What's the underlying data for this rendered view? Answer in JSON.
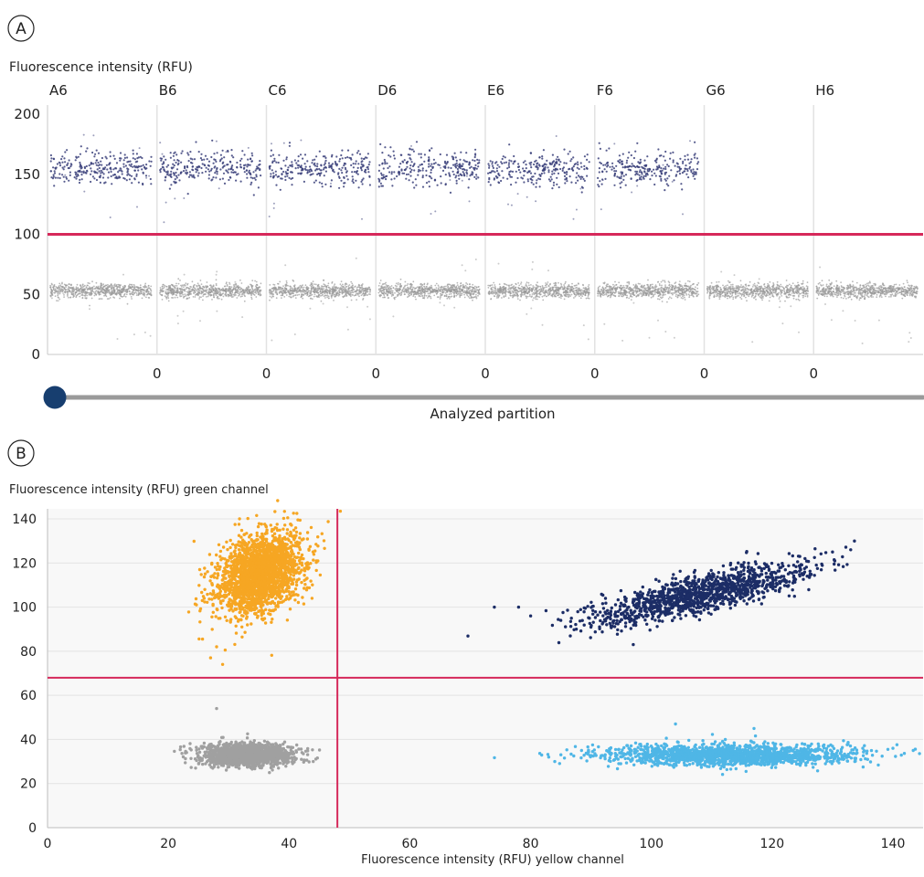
{
  "panels": {
    "a": {
      "label": "A"
    },
    "b": {
      "label": "B"
    }
  },
  "colors": {
    "threshold": "#d6285a",
    "positive_a": "#3a3f7a",
    "negative_a": "#9a9a9a",
    "slider_knob": "#173e6f",
    "slider_track": "#9a9a9a",
    "grid": "#e3e3e3",
    "plot_bg": "#f8f8f8",
    "cluster_orange": "#f6a623",
    "cluster_navy": "#1c2d66",
    "cluster_grey": "#a0a0a0",
    "cluster_lightblue": "#4fb6e6"
  },
  "slider": {
    "label": "Analyzed partition",
    "value_fraction": 0.0
  },
  "chart_data": [
    {
      "type": "scatter",
      "ylabel": "Fluorescence intensity (RFU)",
      "xlabel": "",
      "ylim": [
        0,
        200
      ],
      "yticks": [
        0,
        50,
        100,
        150,
        200
      ],
      "wells": [
        "A6",
        "B6",
        "C6",
        "D6",
        "E6",
        "F6",
        "G6",
        "H6"
      ],
      "well_boundary_labels": [
        "0",
        "0",
        "0",
        "0",
        "0",
        "0",
        "0"
      ],
      "threshold": 100,
      "grid": false,
      "series": [
        {
          "role": "positive",
          "wells_present": [
            "A6",
            "B6",
            "C6",
            "D6",
            "E6",
            "F6"
          ],
          "center": 155,
          "spread": 7
        },
        {
          "role": "negative",
          "wells_present": [
            "A6",
            "B6",
            "C6",
            "D6",
            "E6",
            "F6",
            "G6",
            "H6"
          ],
          "center": 53,
          "spread": 3
        }
      ]
    },
    {
      "type": "scatter",
      "ylabel": "Fluorescence intensity (RFU) green channel",
      "xlabel": "Fluorescence intensity (RFU) yellow channel",
      "xlim": [
        0,
        145
      ],
      "ylim": [
        0,
        145
      ],
      "xticks": [
        0,
        20,
        40,
        60,
        80,
        100,
        120,
        140
      ],
      "yticks": [
        0,
        20,
        40,
        60,
        80,
        100,
        120,
        140
      ],
      "threshold_x": 48,
      "threshold_y": 68,
      "grid": true,
      "series": [
        {
          "color_key": "cluster_orange",
          "cx": 35,
          "cy": 115,
          "sx": 3.5,
          "sy": 9,
          "corr": 0.3,
          "n": 2200,
          "outliers": [
            [
              27,
              77
            ],
            [
              28,
              82
            ],
            [
              29,
              74
            ]
          ]
        },
        {
          "color_key": "cluster_navy",
          "cx": 108,
          "cy": 106,
          "sx": 9,
          "sy": 7,
          "corr": 0.8,
          "n": 1300,
          "outliers": [
            [
              74,
              100
            ],
            [
              78,
              100
            ],
            [
              80,
              96
            ],
            [
              85,
              94
            ],
            [
              97,
              83
            ],
            [
              133,
              126
            ],
            [
              130,
              125
            ]
          ]
        },
        {
          "color_key": "cluster_grey",
          "cx": 33,
          "cy": 33,
          "sx": 3.8,
          "sy": 2.5,
          "corr": 0.0,
          "n": 1500,
          "outliers": [
            [
              28,
              54
            ],
            [
              44,
              30
            ]
          ]
        },
        {
          "color_key": "cluster_lightblue",
          "cx": 113,
          "cy": 33,
          "sx": 10,
          "sy": 2.3,
          "corr": 0.0,
          "n": 1700,
          "outliers": [
            [
              83,
              32
            ],
            [
              84,
              30
            ],
            [
              140,
              36
            ],
            [
              135,
              36
            ],
            [
              117,
              45
            ],
            [
              104,
              47
            ]
          ]
        }
      ]
    }
  ]
}
